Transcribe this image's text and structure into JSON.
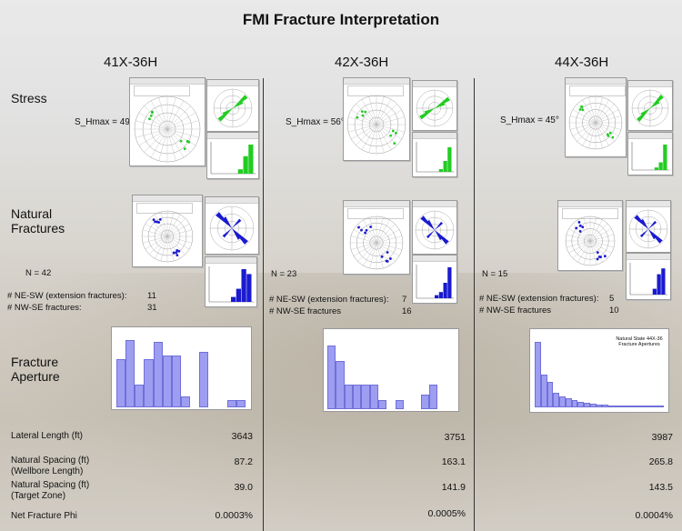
{
  "title": "FMI Fracture Interpretation",
  "wells": [
    "41X-36H",
    "42X-36H",
    "44X-36H"
  ],
  "row_labels": {
    "stress": "Stress",
    "natural_fractures": "Natural\nFractures",
    "fracture_aperture": "Fracture\nAperture"
  },
  "stress": [
    "S_Hmax = 49°",
    "S_Hmax = 56°",
    "S_Hmax = 45°"
  ],
  "natural": [
    {
      "n": "N = 42",
      "ne_label": "# NE-SW (extension fractures):",
      "ne": "11",
      "nw_label": "# NW-SE fractures:",
      "nw": "31"
    },
    {
      "n": "N = 23",
      "ne_label": "# NE-SW (extension fractures):",
      "ne": "7",
      "nw_label": "# NW-SE fractures",
      "nw": "16"
    },
    {
      "n": "N = 15",
      "ne_label": "# NE-SW (extension fractures):",
      "ne": "5",
      "nw_label": "# NW-SE fractures",
      "nw": "10"
    }
  ],
  "aperture_caption": "Natural State 44X-36\nFracture Apertures",
  "aperture_hist": [
    [
      0.65,
      0.9,
      0.3,
      0.65,
      0.88,
      0.7,
      0.7,
      0.15,
      0.0,
      0.74,
      0.0,
      0.0,
      0.1,
      0.1
    ],
    [
      0.85,
      0.65,
      0.33,
      0.33,
      0.33,
      0.33,
      0.12,
      0.0,
      0.12,
      0.0,
      0.0,
      0.2,
      0.33,
      0.0,
      0.0
    ],
    [
      0.9,
      0.45,
      0.35,
      0.2,
      0.15,
      0.12,
      0.1,
      0.08,
      0.06,
      0.05,
      0.04,
      0.04,
      0.03,
      0.03,
      0.02,
      0.02,
      0.02,
      0.01,
      0.03,
      0.01,
      0.01
    ]
  ],
  "stats": [
    {
      "label": "Lateral Length (ft)",
      "values": [
        "3643",
        "3751",
        "3987"
      ]
    },
    {
      "label": "Natural Spacing (ft)\n(Wellbore Length)",
      "values": [
        "87.2",
        "163.1",
        "265.8"
      ]
    },
    {
      "label": "Natural Spacing (ft)\n(Target Zone)",
      "values": [
        "39.0",
        "141.9",
        "143.5"
      ]
    },
    {
      "label": "Net Fracture Phi",
      "values": [
        "0.0003%",
        "0.0005%",
        "0.0004%"
      ]
    }
  ],
  "colors": {
    "stress_green": "#22cc22",
    "fracture_blue": "#1a1ad0",
    "aperture_bar": "#9d9df2"
  }
}
